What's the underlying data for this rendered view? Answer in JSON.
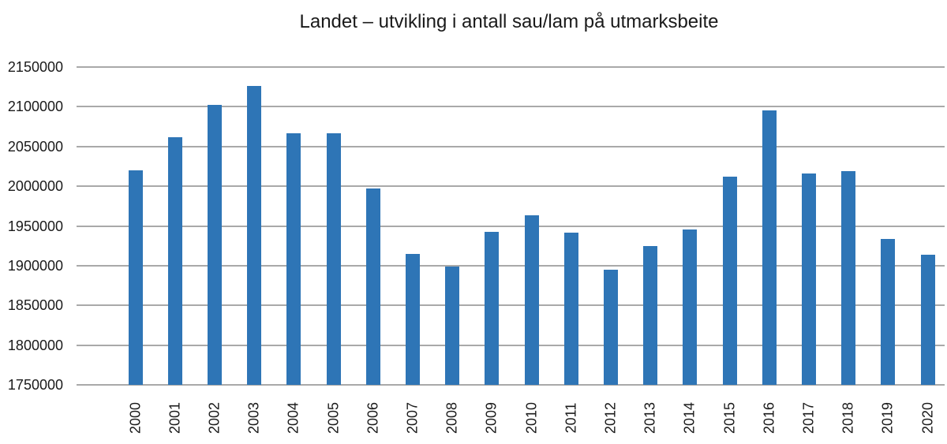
{
  "title": "Landet – utvikling i antall sau/lam på utmarksbeite",
  "colors": {
    "bar": "#2e75b6",
    "gridline": "#a9a9a9",
    "text": "#1a1a1a",
    "background": "#ffffff"
  },
  "chart_data": {
    "type": "bar",
    "title": "Landet – utvikling i antall sau/lam på utmarksbeite",
    "xlabel": "",
    "ylabel": "",
    "categories": [
      "2000",
      "2001",
      "2002",
      "2003",
      "2004",
      "2005",
      "2006",
      "2007",
      "2008",
      "2009",
      "2010",
      "2011",
      "2012",
      "2013",
      "2014",
      "2015",
      "2016",
      "2017",
      "2018",
      "2019",
      "2020"
    ],
    "values": [
      2020000,
      2062000,
      2102000,
      2126000,
      2067000,
      2067000,
      1997000,
      1915000,
      1899000,
      1943000,
      1963000,
      1942000,
      1895000,
      1925000,
      1946000,
      2012000,
      2095000,
      2016000,
      2019000,
      1934000,
      1914000
    ],
    "ylim": [
      1750000,
      2150000
    ],
    "yticks": [
      1750000,
      1800000,
      1850000,
      1900000,
      1950000,
      2000000,
      2050000,
      2100000,
      2150000
    ],
    "ytick_labels": [
      "1750000",
      "1800000",
      "1850000",
      "1900000",
      "1950000",
      "2000000",
      "2050000",
      "2100000",
      "2150000"
    ],
    "grid": "horizontal",
    "legend_position": "none",
    "bar_color": "#2e75b6",
    "x_labels_rotated_degrees": 90
  }
}
